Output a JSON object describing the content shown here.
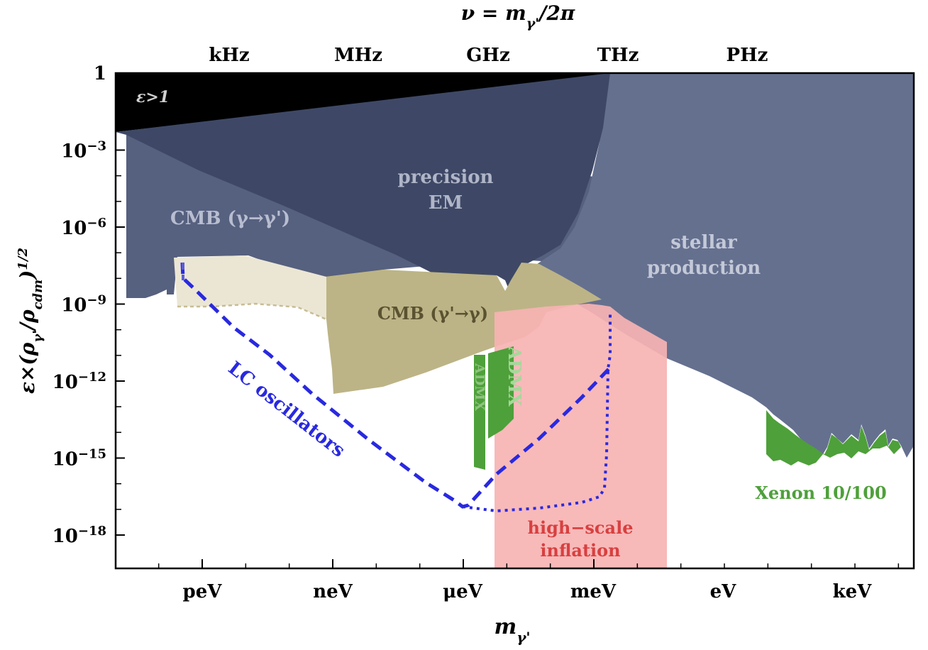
{
  "chart_data": {
    "type": "area",
    "top_title": "ν = m_γ'/2π",
    "xlabel": "m_γ'",
    "ylabel": "ε×(ρ_γ'/ρ_cdm)^1/2",
    "y_scale": "log10",
    "ylim": [
      -19.3,
      0
    ],
    "x_tick_labels": [
      "peV",
      "neV",
      "μeV",
      "meV",
      "eV",
      "keV"
    ],
    "top_tick_labels": [
      "kHz",
      "MHz",
      "GHz",
      "THz",
      "PHz"
    ],
    "y_ticks": [
      {
        "exp": 0,
        "label": "1"
      },
      {
        "exp": -3,
        "label": "10",
        "sup": "−3"
      },
      {
        "exp": -6,
        "label": "10",
        "sup": "−6"
      },
      {
        "exp": -9,
        "label": "10",
        "sup": "−9"
      },
      {
        "exp": -12,
        "label": "10",
        "sup": "−12"
      },
      {
        "exp": -15,
        "label": "10",
        "sup": "−15"
      },
      {
        "exp": -18,
        "label": "10",
        "sup": "−18"
      }
    ],
    "regions": [
      {
        "name": "ε>1",
        "color": "#000000"
      },
      {
        "name": "CMB (γ→γ')",
        "color": "#56607f"
      },
      {
        "name": "precision EM",
        "color": "#3e4866"
      },
      {
        "name": "stellar production",
        "color": "#65708f"
      },
      {
        "name": "CMB (γ'→γ)",
        "color": "#bcb486"
      },
      {
        "name": "ADMX",
        "color": "#4ea03a"
      },
      {
        "name": "Xenon 10/100",
        "color": "#4ea03a"
      },
      {
        "name": "high−scale inflation",
        "color": "#f7b3b3"
      },
      {
        "name": "LC oscillators",
        "color": "#2929e0"
      }
    ],
    "labels": {
      "eps": "ε>1",
      "cmb1": "CMB (γ→γ')",
      "precision_1": "precision",
      "precision_2": "EM",
      "stellar_1": "stellar",
      "stellar_2": "production",
      "cmb2": "CMB (γ'→γ)",
      "admx": "ADMX",
      "lc": "LC oscillators",
      "xenon": "Xenon 10/100",
      "inflation_1": "high−scale",
      "inflation_2": "inflation"
    }
  }
}
